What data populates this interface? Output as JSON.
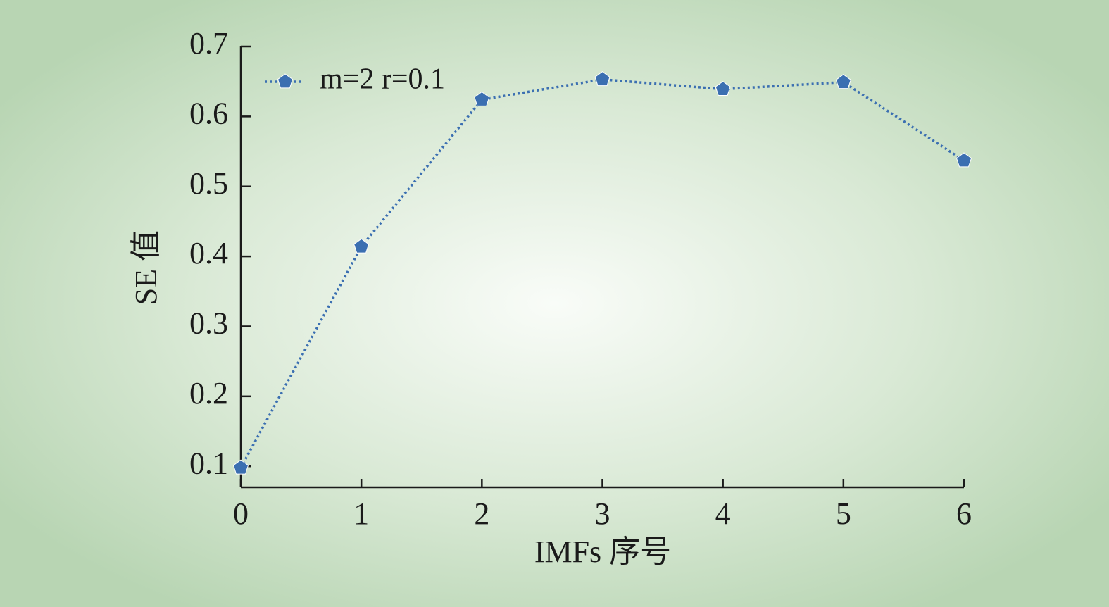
{
  "chart_data": {
    "type": "line",
    "x_label": "IMFs 序号",
    "y_label": "SE 值",
    "x": [
      0,
      1,
      2,
      3,
      4,
      5,
      6
    ],
    "series": [
      {
        "name": "m=2 r=0.1",
        "color": "#3b6fb1",
        "values": [
          0.098,
          0.414,
          0.624,
          0.653,
          0.639,
          0.649,
          0.537
        ]
      }
    ],
    "xlim": [
      0,
      6
    ],
    "xticks": [
      0,
      1,
      2,
      3,
      4,
      5,
      6
    ],
    "ylim": [
      0.07,
      0.7
    ],
    "yticks": [
      0.1,
      0.2,
      0.3,
      0.4,
      0.5,
      0.6,
      0.7
    ],
    "legend": "upper-left"
  }
}
